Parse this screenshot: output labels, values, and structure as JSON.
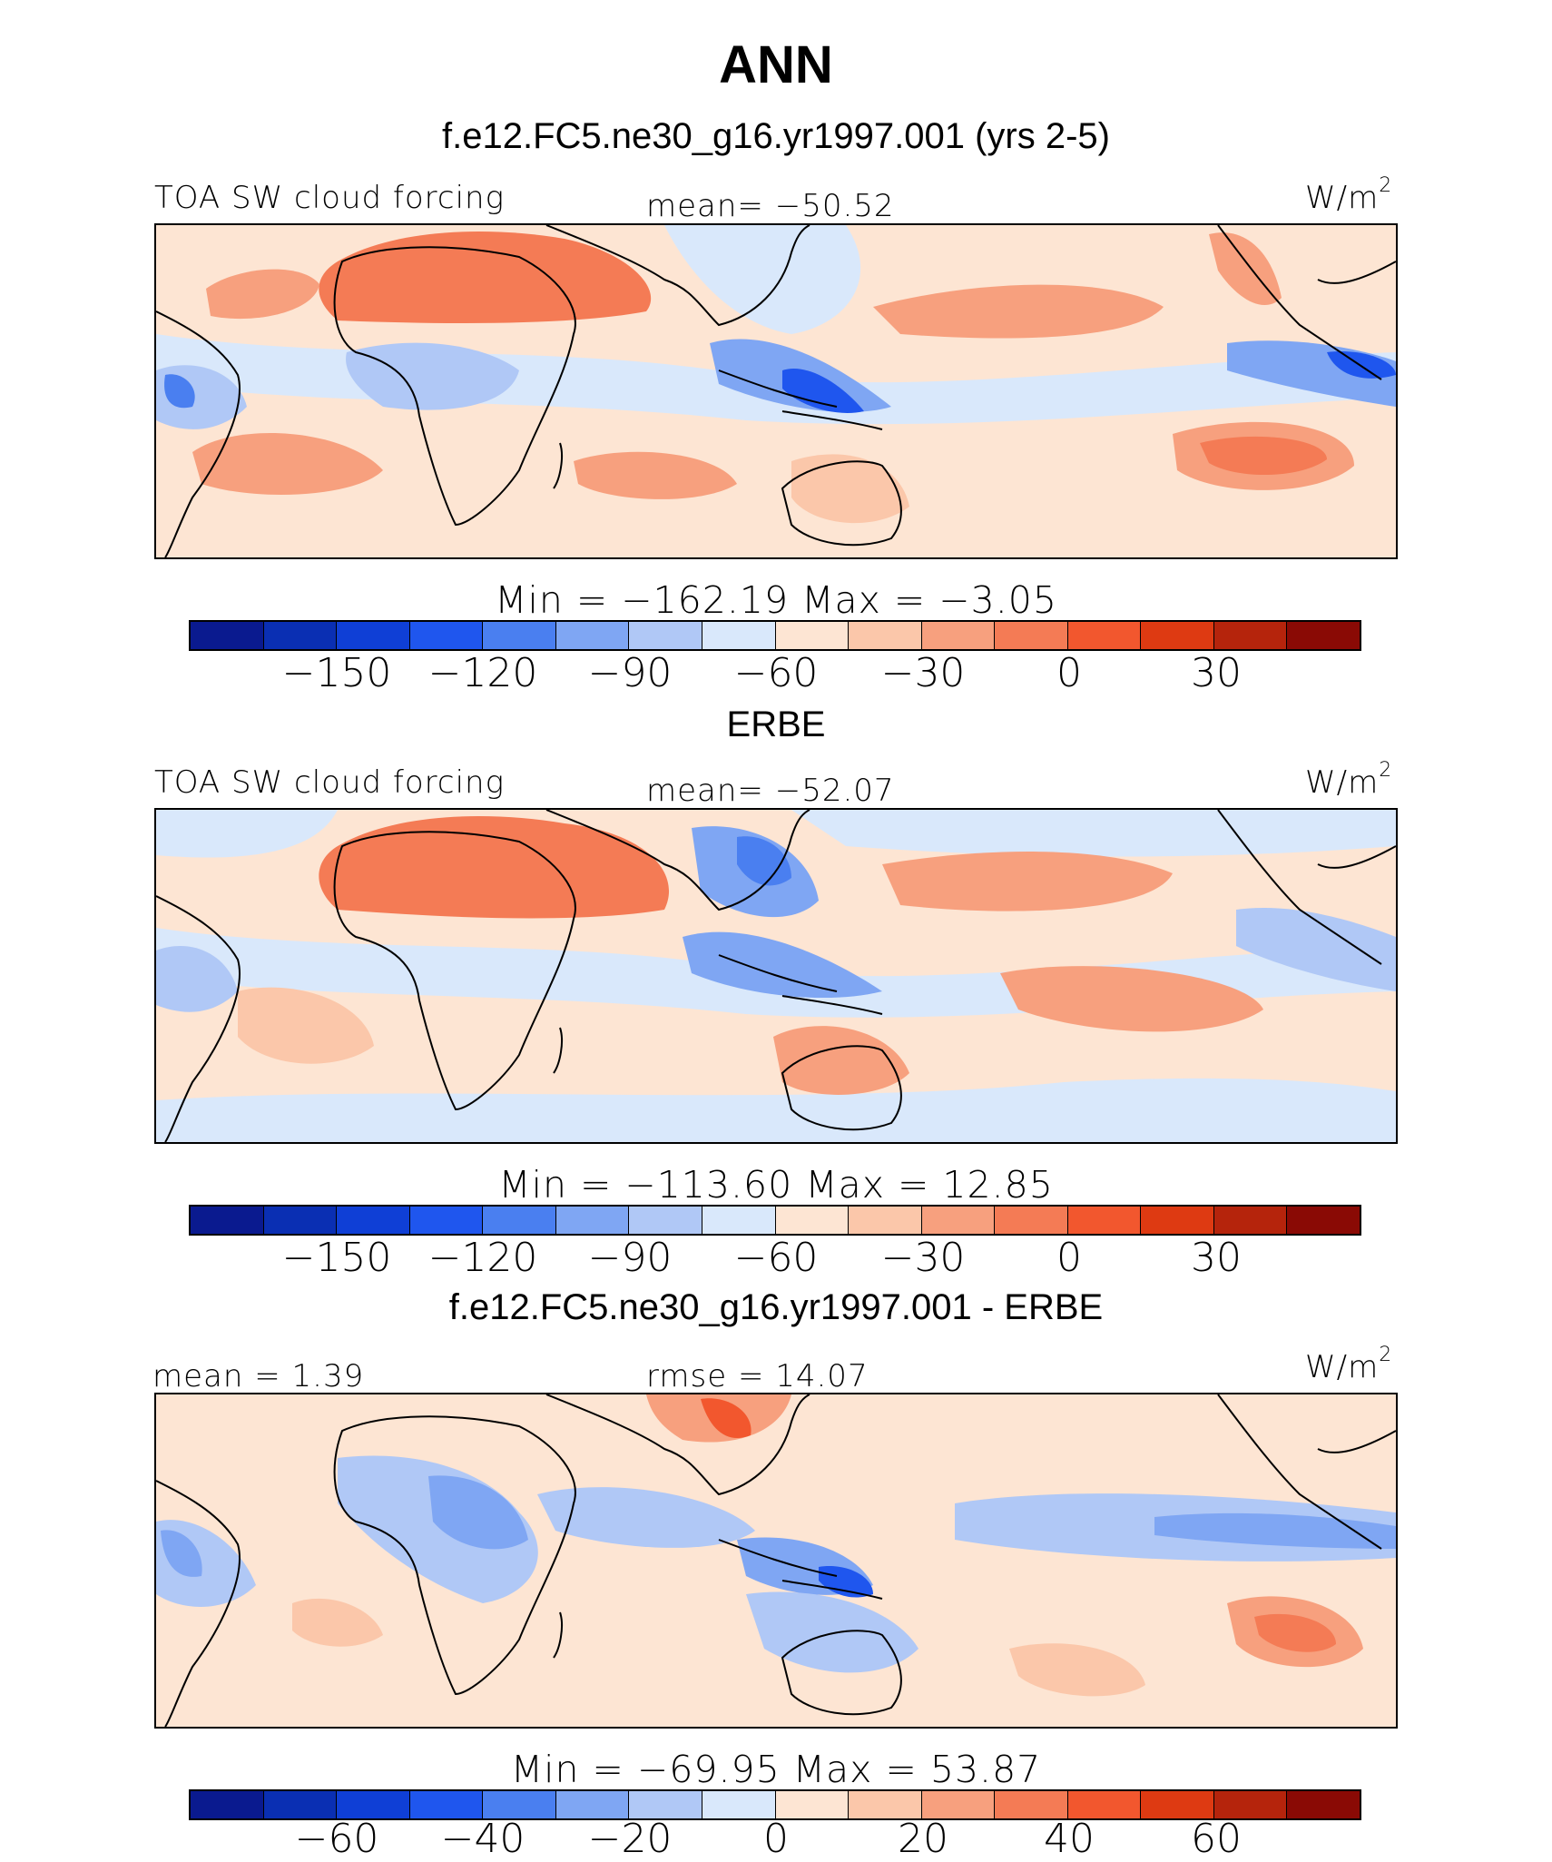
{
  "title": "ANN",
  "colors": {
    "land_line": "#000000",
    "colorbar": [
      "#0a1a8f",
      "#0a2fb3",
      "#0f3fd6",
      "#1f56ee",
      "#4a7ff0",
      "#7fa6f3",
      "#b0c8f6",
      "#d9e8fb",
      "#fde5d3",
      "#fbc7aa",
      "#f7a07e",
      "#f47b55",
      "#f2572e",
      "#de3a12",
      "#b5240c",
      "#8a0a05"
    ]
  },
  "panels": [
    {
      "heading": "f.e12.FC5.ne30_g16.yr1997.001 (yrs 2-5)",
      "left_label": "TOA SW cloud forcing",
      "center_label": "mean=  −50.52",
      "units": "W/m",
      "units_sup": "2",
      "stats": "Min  =  −162.19  Max  =   −3.05",
      "ticks": [
        "−150",
        "−120",
        "−90",
        "−60",
        "−30",
        "0",
        "30"
      ]
    },
    {
      "heading": "ERBE",
      "left_label": "TOA SW cloud forcing",
      "center_label": "mean=  −52.07",
      "units": "W/m",
      "units_sup": "2",
      "stats": "Min  =  −113.60  Max  =   12.85",
      "ticks": [
        "−150",
        "−120",
        "−90",
        "−60",
        "−30",
        "0",
        "30"
      ]
    },
    {
      "heading": "f.e12.FC5.ne30_g16.yr1997.001 - ERBE",
      "left_label": "mean  =    1.39",
      "center_label": "rmse  =   14.07",
      "units": "W/m",
      "units_sup": "2",
      "stats": "Min  =  −69.95  Max  =   53.87",
      "ticks": [
        "−60",
        "−40",
        "−20",
        "0",
        "20",
        "40",
        "60"
      ]
    }
  ]
}
